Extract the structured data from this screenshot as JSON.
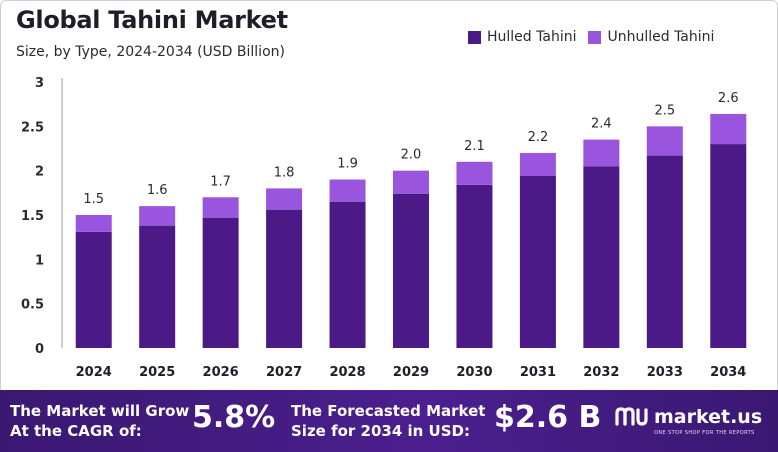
{
  "header": {
    "title": "Global Tahini Market",
    "subtitle": "Size, by Type, 2024-2034 (USD Billion)"
  },
  "legend": [
    {
      "label": "Hulled Tahini",
      "color": "#4b1a86"
    },
    {
      "label": "Unhulled Tahini",
      "color": "#9a55de"
    }
  ],
  "chart_data": {
    "type": "bar",
    "stacked": true,
    "categories": [
      "2024",
      "2025",
      "2026",
      "2027",
      "2028",
      "2029",
      "2030",
      "2031",
      "2032",
      "2033",
      "2034"
    ],
    "series": [
      {
        "name": "Hulled Tahini",
        "values": [
          1.31,
          1.38,
          1.47,
          1.56,
          1.65,
          1.74,
          1.84,
          1.94,
          2.05,
          2.17,
          2.3
        ]
      },
      {
        "name": "Unhulled Tahini",
        "values": [
          0.19,
          0.22,
          0.23,
          0.24,
          0.25,
          0.26,
          0.26,
          0.26,
          0.3,
          0.33,
          0.34
        ]
      }
    ],
    "totals": [
      1.5,
      1.6,
      1.7,
      1.8,
      1.9,
      2.0,
      2.1,
      2.2,
      2.4,
      2.5,
      2.6
    ],
    "total_labels": [
      "1.5",
      "1.6",
      "1.7",
      "1.8",
      "1.9",
      "2.0",
      "2.1",
      "2.2",
      "2.4",
      "2.5",
      "2.6"
    ],
    "yticks": [
      "0",
      "0.5",
      "1",
      "1.5",
      "2",
      "2.5",
      "3"
    ],
    "ylim": [
      0,
      3
    ],
    "grid": false,
    "legend_position": "top-right"
  },
  "footer": {
    "cagr_label": "The Market will Grow At the CAGR of:",
    "cagr_value": "5.8%",
    "forecast_label": "The Forecasted Market Size for 2034 in USD:",
    "forecast_value": "$2.6 B",
    "brand": "market.us",
    "brand_tagline": "ONE STOP SHOP FOR THE REPORTS"
  }
}
